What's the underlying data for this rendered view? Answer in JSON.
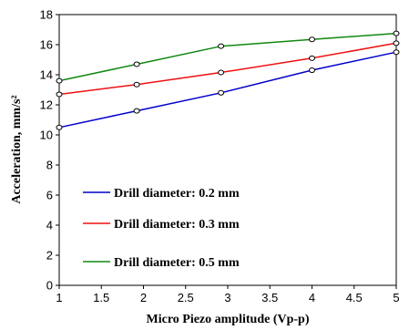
{
  "chart_data": {
    "type": "line",
    "xlabel": "Micro Piezo amplitude (Vp-p)",
    "ylabel": "Acceleration, mm/s²",
    "xlim": [
      1,
      5
    ],
    "ylim": [
      0,
      18
    ],
    "xticks": [
      1,
      1.5,
      2,
      2.5,
      3,
      3.5,
      4,
      4.5,
      5
    ],
    "yticks": [
      0,
      2,
      4,
      6,
      8,
      10,
      12,
      14,
      16,
      18
    ],
    "grid": false,
    "legend_position": "lower-left",
    "series": [
      {
        "name": "Drill diameter: 0.2 mm",
        "color": "#0000cc",
        "x": [
          1,
          1.92,
          2.92,
          4,
          5
        ],
        "y": [
          10.5,
          11.6,
          12.8,
          14.3,
          15.5
        ]
      },
      {
        "name": "Drill diameter: 0.3 mm",
        "color": "#ee1111",
        "x": [
          1,
          1.92,
          2.92,
          4,
          5
        ],
        "y": [
          12.7,
          13.35,
          14.15,
          15.1,
          16.1
        ]
      },
      {
        "name": "Drill diameter: 0.5 mm",
        "color": "#118811",
        "x": [
          1,
          1.92,
          2.92,
          4,
          5
        ],
        "y": [
          13.6,
          14.7,
          15.9,
          16.35,
          16.75
        ]
      }
    ]
  }
}
